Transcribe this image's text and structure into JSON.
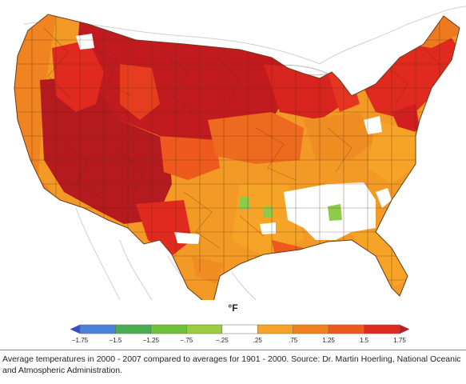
{
  "map": {
    "unit_label": "°F",
    "legend": {
      "colors": [
        "#2f4fd1",
        "#4a82d8",
        "#49ad52",
        "#6fc13b",
        "#9ccc3f",
        "#ffffff",
        "#f6a428",
        "#f0811e",
        "#ee5a1e",
        "#e02a1f",
        "#c21b1f"
      ],
      "labels": [
        "−1.75",
        "−1.5",
        "−1.25",
        "−.75",
        "−.25",
        ".25",
        ".75",
        "1.25",
        "1.5",
        "1.75"
      ],
      "arrows": "both-ends"
    },
    "caption": "Average temperatures in 2000 - 2007 compared to averages for 1901 - 2000.  Source: Dr. Martin Hoerling, National Oceanic and Atmospheric Administration."
  }
}
